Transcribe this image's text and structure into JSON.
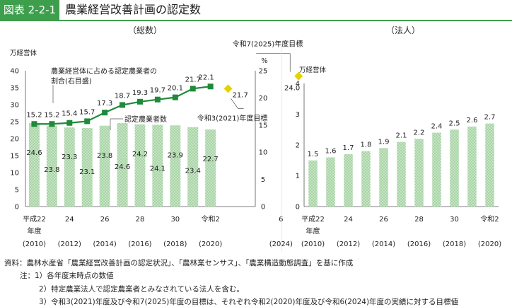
{
  "header": {
    "label": "図表 2-2-1",
    "title": "農業経営改善計画の認定数"
  },
  "colors": {
    "accent": "#3d9e4c",
    "bar_fill": "#a8d5a6",
    "line": "#1f8a3a",
    "target": "#e6d200"
  },
  "chart_data": [
    {
      "type": "bar",
      "title": "（総数）",
      "yleft_unit": "万経営体",
      "yright_unit": "%",
      "yleft_lim": [
        0,
        40
      ],
      "yleft_ticks": [
        0,
        5,
        10,
        15,
        20,
        25,
        30,
        35,
        40
      ],
      "yright_lim": [
        0,
        25
      ],
      "yright_ticks": [
        0,
        5,
        10,
        15,
        20,
        25
      ],
      "x_labels": [
        "平成22",
        "24",
        "26",
        "28",
        "30",
        "令和2",
        "6"
      ],
      "x_sublabels": [
        "(2010)",
        "(2012)",
        "(2014)",
        "(2016)",
        "(2018)",
        "(2020)",
        "(2024)"
      ],
      "year_label": "年度",
      "categories": [
        2010,
        2011,
        2012,
        2013,
        2014,
        2015,
        2016,
        2017,
        2018,
        2019,
        2020
      ],
      "series": [
        {
          "name": "認定農業者数",
          "type": "bar",
          "axis": "left",
          "values": [
            24.6,
            23.8,
            23.3,
            23.1,
            23.8,
            24.6,
            24.2,
            24.1,
            23.9,
            23.4,
            22.7
          ]
        },
        {
          "name": "農業経営体に占める認定農業者の割合(右目盛)",
          "type": "line",
          "axis": "right",
          "values": [
            15.2,
            15.2,
            15.4,
            15.7,
            17.3,
            18.7,
            19.3,
            19.7,
            20.1,
            21.7,
            22.1
          ]
        }
      ],
      "targets": [
        {
          "x": 2021,
          "value": 21.7,
          "label": "令和3(2021)年度目標"
        },
        {
          "x": 2025,
          "value": 24.0,
          "label": "令和7(2025)年度目標"
        }
      ],
      "annotations": {
        "line_label_line1": "農業経営体に占める認定農業者の",
        "line_label_line2": "割合(右目盛)",
        "bar_label": "認定農業者数"
      }
    },
    {
      "type": "bar",
      "title": "（法人）",
      "yleft_unit": "万経営体",
      "ylim": [
        0,
        4
      ],
      "yticks": [
        0,
        1,
        2,
        3,
        4
      ],
      "x_labels": [
        "平成22",
        "24",
        "26",
        "28",
        "30",
        "令和2"
      ],
      "x_sublabels": [
        "(2010)",
        "(2012)",
        "(2014)",
        "(2016)",
        "(2018)",
        "(2020)"
      ],
      "year_label": "年度",
      "categories": [
        2010,
        2011,
        2012,
        2013,
        2014,
        2015,
        2016,
        2017,
        2018,
        2019,
        2020
      ],
      "values": [
        1.5,
        1.6,
        1.7,
        1.8,
        1.9,
        2.1,
        2.2,
        2.4,
        2.5,
        2.6,
        2.7
      ]
    }
  ],
  "notes": {
    "source": "資料：農林水産省「農業経営改善計画の認定状況」、「農林業センサス」、「農業構造動態調査」を基に作成",
    "note_prefix": "注：1）各年度末時点の数値",
    "note2": "2）特定農業法人で認定農業者とみなされている法人を含む。",
    "note3": "3）令和3(2021)年度及び令和7(2025)年度の目標は、それぞれ令和2(2020)年度及び令和6(2024)年度の実績に対する目標値"
  }
}
